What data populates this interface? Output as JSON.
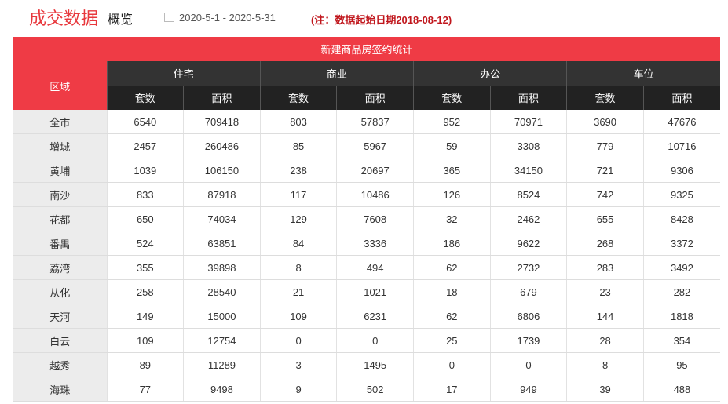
{
  "header": {
    "title": "成交数据",
    "subtitle": "概览",
    "date_range": "2020-5-1 - 2020-5-31",
    "note": "(注：数据起始日期2018-08-12)"
  },
  "table": {
    "title": "新建商品房签约统计",
    "region_header": "区域",
    "groups": [
      {
        "name": "住宅",
        "columns": [
          "套数",
          "面积"
        ]
      },
      {
        "name": "商业",
        "columns": [
          "套数",
          "面积"
        ]
      },
      {
        "name": "办公",
        "columns": [
          "套数",
          "面积"
        ]
      },
      {
        "name": "车位",
        "columns": [
          "套数",
          "面积"
        ]
      }
    ],
    "rows": [
      {
        "region": "全市",
        "values": [
          6540,
          709418,
          803,
          57837,
          952,
          70971,
          3690,
          47676
        ]
      },
      {
        "region": "增城",
        "values": [
          2457,
          260486,
          85,
          5967,
          59,
          3308,
          779,
          10716
        ]
      },
      {
        "region": "黄埔",
        "values": [
          1039,
          106150,
          238,
          20697,
          365,
          34150,
          721,
          9306
        ]
      },
      {
        "region": "南沙",
        "values": [
          833,
          87918,
          117,
          10486,
          126,
          8524,
          742,
          9325
        ]
      },
      {
        "region": "花都",
        "values": [
          650,
          74034,
          129,
          7608,
          32,
          2462,
          655,
          8428
        ]
      },
      {
        "region": "番禺",
        "values": [
          524,
          63851,
          84,
          3336,
          186,
          9622,
          268,
          3372
        ]
      },
      {
        "region": "荔湾",
        "values": [
          355,
          39898,
          8,
          494,
          62,
          2732,
          283,
          3492
        ]
      },
      {
        "region": "从化",
        "values": [
          258,
          28540,
          21,
          1021,
          18,
          679,
          23,
          282
        ]
      },
      {
        "region": "天河",
        "values": [
          149,
          15000,
          109,
          6231,
          62,
          6806,
          144,
          1818
        ]
      },
      {
        "region": "白云",
        "values": [
          109,
          12754,
          0,
          0,
          25,
          1739,
          28,
          354
        ]
      },
      {
        "region": "越秀",
        "values": [
          89,
          11289,
          3,
          1495,
          0,
          0,
          8,
          95
        ]
      },
      {
        "region": "海珠",
        "values": [
          77,
          9498,
          9,
          502,
          17,
          949,
          39,
          488
        ]
      }
    ]
  }
}
